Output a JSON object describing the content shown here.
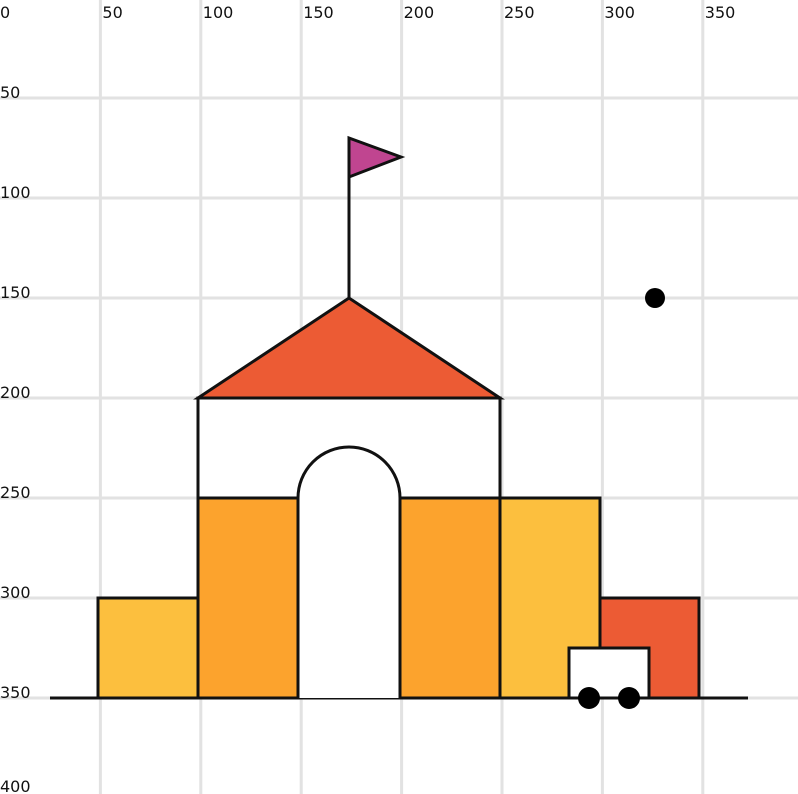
{
  "grid": {
    "x_ticks": [
      "0",
      "50",
      "100",
      "150",
      "200",
      "250",
      "300",
      "350"
    ],
    "y_ticks": [
      "50",
      "100",
      "150",
      "200",
      "250",
      "300",
      "350",
      "400"
    ]
  },
  "colors": {
    "grid": "#e2e2e2",
    "outline": "#111111",
    "yellow": "#fcbf3e",
    "orange": "#fca32d",
    "red": "#ec5b34",
    "magenta": "#c04590",
    "white": "#ffffff",
    "black": "#000000"
  }
}
